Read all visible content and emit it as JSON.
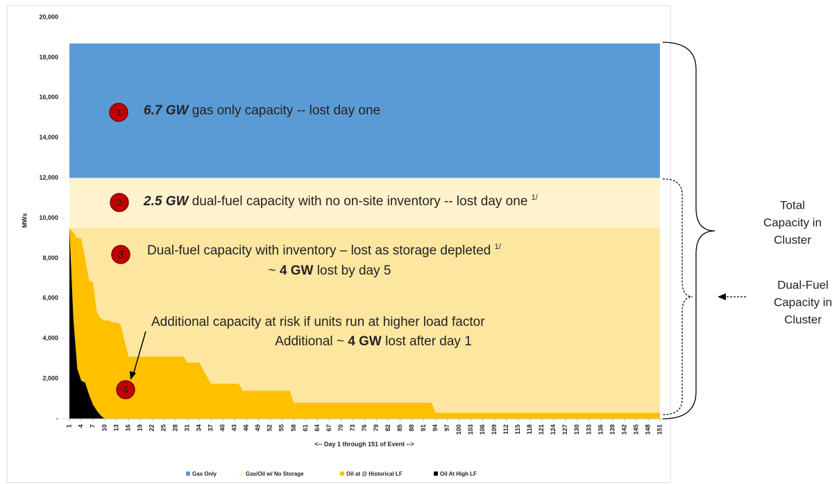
{
  "chart_data": {
    "type": "stacked_area",
    "y_label": "MWs",
    "x_label": "<-- Day 1 through 151 of Event -->",
    "x": [
      1,
      2,
      3,
      4,
      5,
      6,
      7,
      8,
      9,
      10,
      11,
      12,
      13,
      14,
      15,
      16,
      30,
      31,
      34,
      36,
      37,
      44,
      45,
      57,
      58,
      93,
      94,
      151
    ],
    "series": [
      {
        "name": "Gas Only",
        "color": "#5b9bd5",
        "values": [
          6700,
          6700,
          6700,
          6700,
          6700,
          6700,
          6700,
          6700,
          6700,
          6700,
          6700,
          6700,
          6700,
          6700,
          6700,
          6700,
          6700,
          6700,
          6700,
          6700,
          6700,
          6700,
          6700,
          6700,
          6700,
          6700,
          6700,
          6700
        ]
      },
      {
        "name": "Gas/Oil w/ No Storage",
        "color": "#fff2cc",
        "values": [
          2500,
          2700,
          3000,
          3000,
          4000,
          5100,
          5200,
          6700,
          7000,
          7100,
          7100,
          7200,
          7200,
          7300,
          8100,
          8900,
          8900,
          9200,
          9200,
          9900,
          10250,
          10250,
          10600,
          10600,
          11200,
          11200,
          11700,
          11700
        ]
      },
      {
        "name": "Oil at @ Historical LF",
        "color": "#ffc000",
        "values": [
          0,
          4300,
          6500,
          7100,
          6200,
          5700,
          6100,
          4900,
          4850,
          4900,
          4900,
          4800,
          4800,
          4700,
          3900,
          3100,
          3100,
          2800,
          2800,
          2100,
          1750,
          1750,
          1400,
          1400,
          800,
          800,
          300,
          300
        ]
      },
      {
        "name": "Oil At High LF",
        "color": "#000000",
        "values": [
          9500,
          5000,
          2500,
          1900,
          1800,
          1200,
          700,
          400,
          150,
          0,
          0,
          0,
          0,
          0,
          0,
          0,
          0,
          0,
          0,
          0,
          0,
          0,
          0,
          0,
          0,
          0,
          0,
          0
        ]
      }
    ],
    "xlim": [
      1,
      151
    ],
    "xticks": [
      1,
      4,
      7,
      10,
      13,
      16,
      19,
      22,
      25,
      28,
      31,
      34,
      37,
      40,
      43,
      46,
      49,
      52,
      55,
      58,
      61,
      64,
      67,
      70,
      73,
      76,
      79,
      82,
      85,
      88,
      91,
      94,
      97,
      100,
      103,
      106,
      109,
      112,
      115,
      118,
      121,
      124,
      127,
      130,
      133,
      136,
      139,
      142,
      145,
      148,
      151
    ],
    "ylim": [
      0,
      20000
    ],
    "yticks": [
      {
        "value": 0,
        "label": "-"
      },
      {
        "value": 2000,
        "label": "2,000"
      },
      {
        "value": 4000,
        "label": "4,000"
      },
      {
        "value": 6000,
        "label": "6,000"
      },
      {
        "value": 8000,
        "label": "8,000"
      },
      {
        "value": 10000,
        "label": "10,000"
      },
      {
        "value": 12000,
        "label": "12,000"
      },
      {
        "value": 14000,
        "label": "14,000"
      },
      {
        "value": 16000,
        "label": "16,000"
      },
      {
        "value": 18000,
        "label": "18,000"
      },
      {
        "value": 20000,
        "label": "20,000"
      }
    ],
    "legend": "bottom",
    "annotations": [
      {
        "marker": "1",
        "bold": "6.7 GW",
        "text": "gas only capacity -- lost day one"
      },
      {
        "marker": "2",
        "bold": "2.5 GW",
        "text": "dual-fuel  capacity with no on-site inventory -- lost day one",
        "note": "1/"
      },
      {
        "marker": "3",
        "line1": "Dual-fuel capacity with inventory – lost as storage depleted",
        "note": "1/",
        "pre": "~",
        "bold": "4 GW",
        "post": "lost by day 5"
      },
      {
        "marker": "4",
        "line1": "Additional  capacity at risk if units run at higher load factor",
        "pre": "Additional  ~",
        "bold": "4 GW",
        "post": "lost after day 1"
      }
    ],
    "side_labels": [
      {
        "lines": [
          "Total",
          "Capacity in",
          "Cluster"
        ]
      },
      {
        "lines": [
          "Dual-Fuel",
          "Capacity in",
          "Cluster"
        ]
      }
    ]
  }
}
